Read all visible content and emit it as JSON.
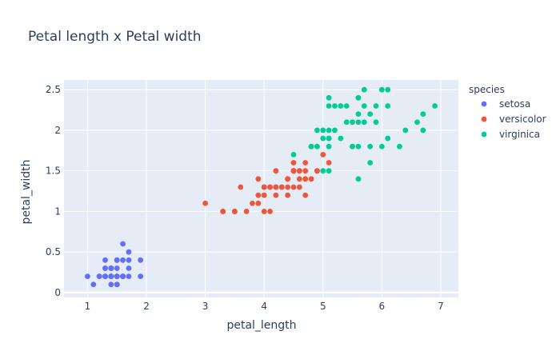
{
  "chart_data": {
    "type": "scatter",
    "title": "Petal length x Petal width",
    "xlabel": "petal_length",
    "ylabel": "petal_width",
    "xlim": [
      0.6,
      7.3
    ],
    "ylim": [
      -0.06,
      2.62
    ],
    "xticks": [
      1,
      2,
      3,
      4,
      5,
      6,
      7
    ],
    "yticks": [
      0,
      0.5,
      1,
      1.5,
      2,
      2.5
    ],
    "grid": true,
    "legend": {
      "title": "species",
      "placement": "top-right"
    },
    "series": [
      {
        "name": "setosa",
        "color": "#636efa",
        "points": [
          [
            1.4,
            0.2
          ],
          [
            1.4,
            0.2
          ],
          [
            1.3,
            0.2
          ],
          [
            1.5,
            0.2
          ],
          [
            1.4,
            0.2
          ],
          [
            1.7,
            0.4
          ],
          [
            1.4,
            0.3
          ],
          [
            1.5,
            0.2
          ],
          [
            1.4,
            0.2
          ],
          [
            1.5,
            0.1
          ],
          [
            1.5,
            0.2
          ],
          [
            1.6,
            0.2
          ],
          [
            1.4,
            0.1
          ],
          [
            1.1,
            0.1
          ],
          [
            1.2,
            0.2
          ],
          [
            1.5,
            0.4
          ],
          [
            1.3,
            0.4
          ],
          [
            1.4,
            0.3
          ],
          [
            1.7,
            0.3
          ],
          [
            1.5,
            0.3
          ],
          [
            1.7,
            0.2
          ],
          [
            1.5,
            0.4
          ],
          [
            1.0,
            0.2
          ],
          [
            1.7,
            0.5
          ],
          [
            1.9,
            0.2
          ],
          [
            1.6,
            0.2
          ],
          [
            1.6,
            0.4
          ],
          [
            1.5,
            0.2
          ],
          [
            1.4,
            0.2
          ],
          [
            1.6,
            0.2
          ],
          [
            1.6,
            0.2
          ],
          [
            1.5,
            0.4
          ],
          [
            1.5,
            0.1
          ],
          [
            1.4,
            0.2
          ],
          [
            1.5,
            0.1
          ],
          [
            1.2,
            0.2
          ],
          [
            1.3,
            0.2
          ],
          [
            1.5,
            0.1
          ],
          [
            1.3,
            0.2
          ],
          [
            1.5,
            0.2
          ],
          [
            1.3,
            0.3
          ],
          [
            1.3,
            0.3
          ],
          [
            1.3,
            0.2
          ],
          [
            1.6,
            0.6
          ],
          [
            1.9,
            0.4
          ],
          [
            1.4,
            0.3
          ],
          [
            1.6,
            0.2
          ],
          [
            1.4,
            0.2
          ],
          [
            1.5,
            0.2
          ],
          [
            1.4,
            0.2
          ]
        ]
      },
      {
        "name": "versicolor",
        "color": "#ef553b",
        "points": [
          [
            4.7,
            1.4
          ],
          [
            4.5,
            1.5
          ],
          [
            4.9,
            1.5
          ],
          [
            4.0,
            1.3
          ],
          [
            4.6,
            1.5
          ],
          [
            4.5,
            1.3
          ],
          [
            4.7,
            1.6
          ],
          [
            3.3,
            1.0
          ],
          [
            4.6,
            1.3
          ],
          [
            3.9,
            1.4
          ],
          [
            3.5,
            1.0
          ],
          [
            4.2,
            1.5
          ],
          [
            4.0,
            1.0
          ],
          [
            4.7,
            1.4
          ],
          [
            3.6,
            1.3
          ],
          [
            4.4,
            1.4
          ],
          [
            4.5,
            1.5
          ],
          [
            4.1,
            1.0
          ],
          [
            4.5,
            1.5
          ],
          [
            3.9,
            1.1
          ],
          [
            4.8,
            1.8
          ],
          [
            4.0,
            1.3
          ],
          [
            4.9,
            1.5
          ],
          [
            4.7,
            1.2
          ],
          [
            4.3,
            1.3
          ],
          [
            4.4,
            1.4
          ],
          [
            4.8,
            1.4
          ],
          [
            5.0,
            1.7
          ],
          [
            4.5,
            1.5
          ],
          [
            3.5,
            1.0
          ],
          [
            3.8,
            1.1
          ],
          [
            3.7,
            1.0
          ],
          [
            3.9,
            1.2
          ],
          [
            5.1,
            1.6
          ],
          [
            4.5,
            1.5
          ],
          [
            4.5,
            1.6
          ],
          [
            4.7,
            1.5
          ],
          [
            4.4,
            1.3
          ],
          [
            4.1,
            1.3
          ],
          [
            4.0,
            1.3
          ],
          [
            4.4,
            1.2
          ],
          [
            4.6,
            1.4
          ],
          [
            4.0,
            1.2
          ],
          [
            3.3,
            1.0
          ],
          [
            4.2,
            1.3
          ],
          [
            4.2,
            1.2
          ],
          [
            4.2,
            1.3
          ],
          [
            4.3,
            1.3
          ],
          [
            3.0,
            1.1
          ],
          [
            4.1,
            1.3
          ]
        ]
      },
      {
        "name": "virginica",
        "color": "#00cc96",
        "points": [
          [
            6.0,
            2.5
          ],
          [
            5.1,
            1.9
          ],
          [
            5.9,
            2.1
          ],
          [
            5.6,
            1.8
          ],
          [
            5.8,
            2.2
          ],
          [
            6.6,
            2.1
          ],
          [
            4.5,
            1.7
          ],
          [
            6.3,
            1.8
          ],
          [
            5.8,
            1.8
          ],
          [
            6.1,
            2.5
          ],
          [
            5.1,
            2.0
          ],
          [
            5.3,
            1.9
          ],
          [
            5.5,
            2.1
          ],
          [
            5.0,
            2.0
          ],
          [
            5.1,
            2.4
          ],
          [
            5.3,
            2.3
          ],
          [
            5.5,
            1.8
          ],
          [
            6.7,
            2.2
          ],
          [
            6.9,
            2.3
          ],
          [
            5.0,
            1.5
          ],
          [
            5.7,
            2.3
          ],
          [
            4.9,
            2.0
          ],
          [
            6.7,
            2.0
          ],
          [
            4.9,
            1.8
          ],
          [
            5.7,
            2.1
          ],
          [
            6.0,
            1.8
          ],
          [
            4.8,
            1.8
          ],
          [
            4.9,
            1.8
          ],
          [
            5.6,
            2.1
          ],
          [
            5.8,
            1.6
          ],
          [
            6.1,
            1.9
          ],
          [
            6.4,
            2.0
          ],
          [
            5.6,
            2.2
          ],
          [
            5.1,
            1.5
          ],
          [
            5.6,
            1.4
          ],
          [
            6.1,
            2.3
          ],
          [
            5.6,
            2.4
          ],
          [
            5.5,
            1.8
          ],
          [
            4.8,
            1.8
          ],
          [
            5.4,
            2.1
          ],
          [
            5.6,
            2.4
          ],
          [
            5.1,
            2.3
          ],
          [
            5.1,
            1.9
          ],
          [
            5.9,
            2.3
          ],
          [
            5.7,
            2.5
          ],
          [
            5.2,
            2.3
          ],
          [
            5.0,
            1.9
          ],
          [
            5.2,
            2.0
          ],
          [
            5.4,
            2.3
          ],
          [
            5.1,
            1.8
          ]
        ]
      }
    ]
  }
}
